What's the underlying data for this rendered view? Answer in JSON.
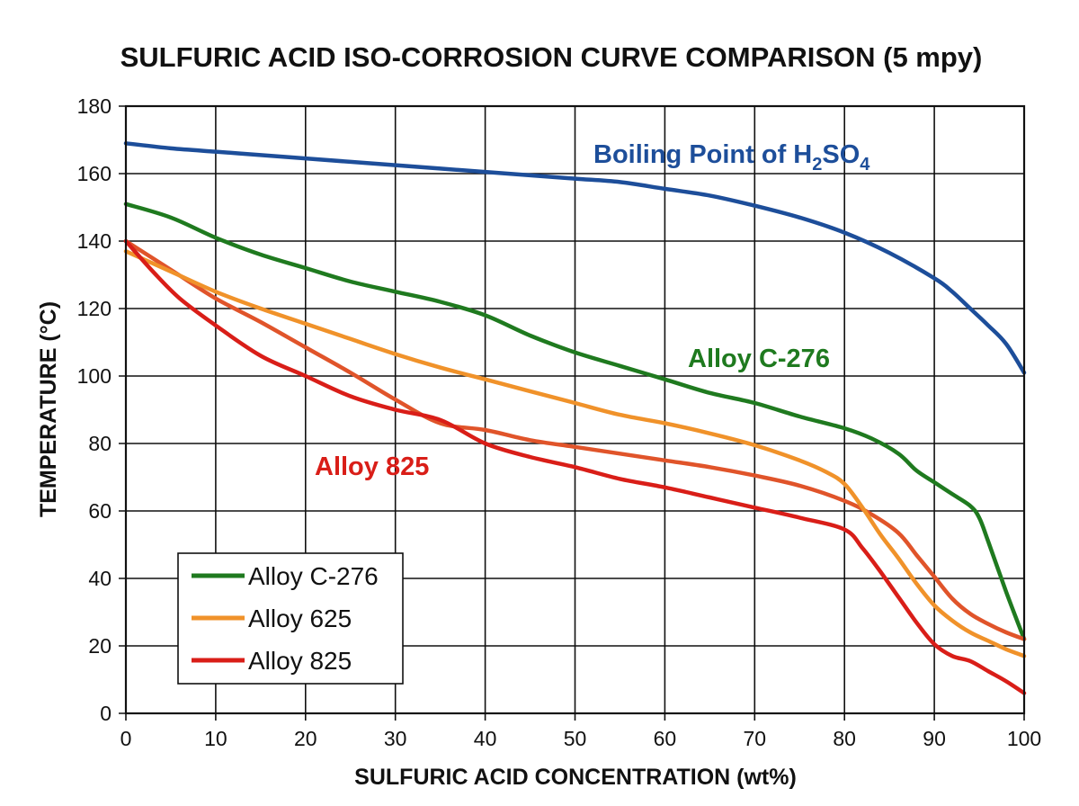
{
  "chart_data": {
    "type": "line",
    "title": "SULFURIC ACID ISO-CORROSION CURVE COMPARISON (5 mpy)",
    "xlabel": "SULFURIC ACID CONCENTRATION (wt%)",
    "ylabel": "TEMPERATURE (°C)",
    "xlim": [
      0,
      100
    ],
    "ylim": [
      0,
      180
    ],
    "xticks": [
      0,
      10,
      20,
      30,
      40,
      50,
      60,
      70,
      80,
      90,
      100
    ],
    "yticks": [
      0,
      20,
      40,
      60,
      80,
      100,
      120,
      140,
      160,
      180
    ],
    "grid": true,
    "legend_position": "bottom-left",
    "series": [
      {
        "id": "c276",
        "name": "Alloy C-276",
        "color": "#1f7a1f",
        "in_legend": true,
        "x": [
          0,
          5,
          10,
          15,
          20,
          25,
          30,
          35,
          40,
          45,
          50,
          55,
          60,
          65,
          70,
          75,
          80,
          83,
          86,
          88,
          90,
          92,
          94,
          95,
          96,
          98,
          100
        ],
        "y": [
          151,
          147,
          141,
          136,
          132,
          128,
          125,
          122,
          118,
          112,
          107,
          103,
          99,
          95,
          92,
          88,
          84.5,
          81.5,
          77,
          72,
          68.5,
          65,
          61.5,
          58,
          51,
          36,
          22
        ]
      },
      {
        "id": "a625",
        "name": "Alloy 625",
        "color": "#f0922a",
        "in_legend": true,
        "x": [
          0,
          5,
          10,
          15,
          20,
          25,
          30,
          35,
          40,
          45,
          50,
          55,
          60,
          65,
          70,
          75,
          78,
          80,
          82,
          84,
          86,
          88,
          90,
          92,
          94,
          96,
          98,
          100
        ],
        "y": [
          137,
          131,
          125,
          120,
          115.5,
          111,
          106.5,
          102.5,
          99,
          95.5,
          92,
          88.5,
          86,
          83,
          79.5,
          75,
          71.5,
          68,
          61,
          53,
          46,
          38.5,
          32,
          27.5,
          24,
          21.5,
          19,
          17
        ]
      },
      {
        "id": "a825",
        "name": "Alloy 825",
        "color": "#d91e18",
        "in_legend": true,
        "x": [
          0,
          3,
          6,
          10,
          15,
          20,
          25,
          30,
          35,
          40,
          45,
          50,
          55,
          60,
          65,
          70,
          75,
          80,
          82,
          84,
          86,
          88,
          90,
          92,
          94,
          96,
          98,
          100
        ],
        "y": [
          140,
          131,
          123,
          115,
          106,
          100,
          94,
          90,
          87,
          80,
          76,
          73,
          69.5,
          67,
          64,
          61,
          58,
          54.5,
          49,
          42,
          34.5,
          27,
          20.5,
          17,
          15.5,
          12.5,
          9.5,
          6
        ]
      },
      {
        "id": "mid",
        "name": "",
        "color": "#e0542a",
        "in_legend": false,
        "x": [
          0,
          5,
          10,
          15,
          20,
          25,
          30,
          35,
          40,
          45,
          50,
          55,
          60,
          65,
          70,
          75,
          80,
          83,
          86,
          88,
          90,
          92,
          94,
          96,
          98,
          100
        ],
        "y": [
          140,
          131.5,
          123,
          116,
          108.5,
          101,
          93,
          86,
          84,
          81,
          79,
          77,
          75,
          73,
          70.5,
          67.5,
          63,
          59,
          53.5,
          47,
          40.5,
          34,
          29.5,
          26.5,
          24,
          22
        ]
      },
      {
        "id": "bp",
        "name": "Boiling Point of H2SO4",
        "color": "#1d4e9a",
        "in_legend": false,
        "x": [
          0,
          5,
          10,
          15,
          20,
          25,
          30,
          35,
          40,
          45,
          50,
          55,
          60,
          65,
          70,
          75,
          80,
          85,
          90,
          92,
          94,
          96,
          98,
          100
        ],
        "y": [
          169,
          167.5,
          166.5,
          165.5,
          164.5,
          163.5,
          162.5,
          161.5,
          160.5,
          159.5,
          158.5,
          157.5,
          155.5,
          153.5,
          150.5,
          147,
          142.5,
          136.5,
          129,
          125,
          120,
          115,
          109.5,
          101
        ]
      }
    ],
    "annotations": {
      "boiling_point": {
        "main": "Boiling Point of H",
        "sub1": "2",
        "mid": "SO",
        "sub2": "4"
      },
      "c276": "Alloy C-276",
      "a825": "Alloy 825"
    }
  }
}
